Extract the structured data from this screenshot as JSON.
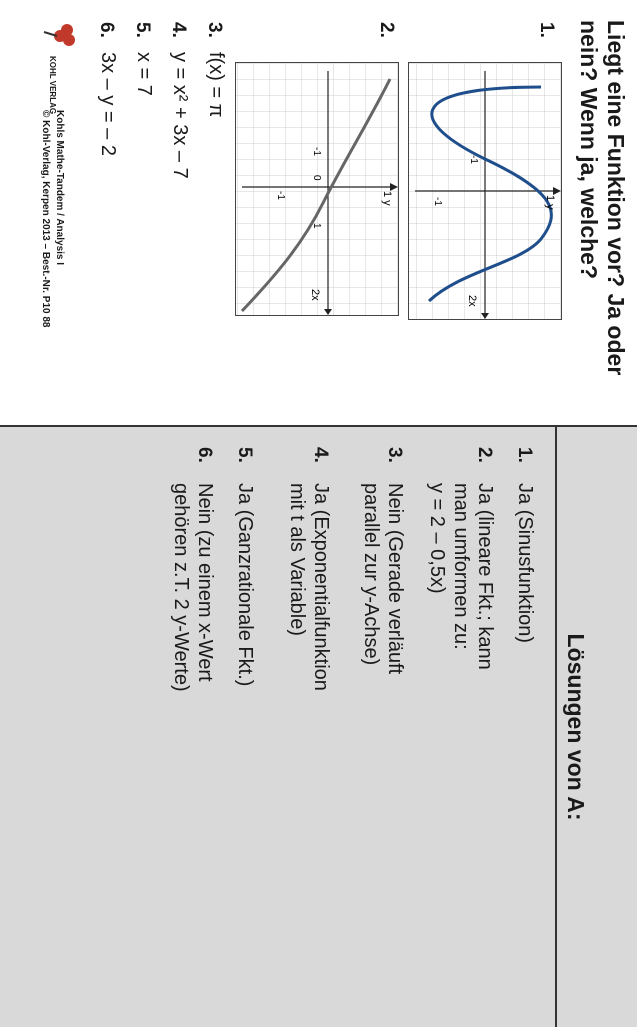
{
  "questions": {
    "title": "Liegt eine Funktion vor? Ja oder nein? Wenn ja, welche?",
    "items": [
      {
        "num": "1.",
        "text": ""
      },
      {
        "num": "2.",
        "text": ""
      },
      {
        "num": "3.",
        "text": "f(x) = π"
      },
      {
        "num": "4.",
        "text": "y = x² + 3x – 7"
      },
      {
        "num": "5.",
        "text": "x = 7"
      },
      {
        "num": "6.",
        "text": "3x – y = – 2"
      }
    ],
    "graph1": {
      "x_label": "2x",
      "y_label": "1 y",
      "tick_neg_x": "-1",
      "tick_neg_y": "-1"
    },
    "graph2": {
      "x_label": "2x",
      "y_label": "1 y",
      "tick_neg_x": "-1",
      "tick_zero": "0",
      "tick_pos_x": "1",
      "tick_neg_y": "-1"
    }
  },
  "solutions": {
    "title": "Lösungen von A:",
    "items": [
      {
        "num": "1.",
        "text": "Ja (Sinusfunktion)"
      },
      {
        "num": "2.",
        "text": "Ja (lineare Fkt.; kann\nman umformen zu:\ny = 2 – 0,5x)"
      },
      {
        "num": "3.",
        "text": "Nein (Gerade verläuft\nparallel zur y-Achse)"
      },
      {
        "num": "4.",
        "text": "Ja (Exponentialfunktion\nmit t als Variable)"
      },
      {
        "num": "5.",
        "text": "Ja (Ganzrationale Fkt.)"
      },
      {
        "num": "6.",
        "text": "Nein (zu einem x-Wert\ngehören z.T. 2 y-Werte)"
      }
    ]
  },
  "footer": {
    "logo_text": "KOHL VERLAG",
    "title": "Kohls Mathe-Tandem / Analysis I",
    "publisher": "© Kohl-Verlag, Kerpen 2013",
    "order_number": "Best.-Nr. P10 88"
  },
  "colors": {
    "curve1": "#1f4e8c",
    "curve2": "#666666",
    "solution_bg": "#d9d9d9"
  }
}
